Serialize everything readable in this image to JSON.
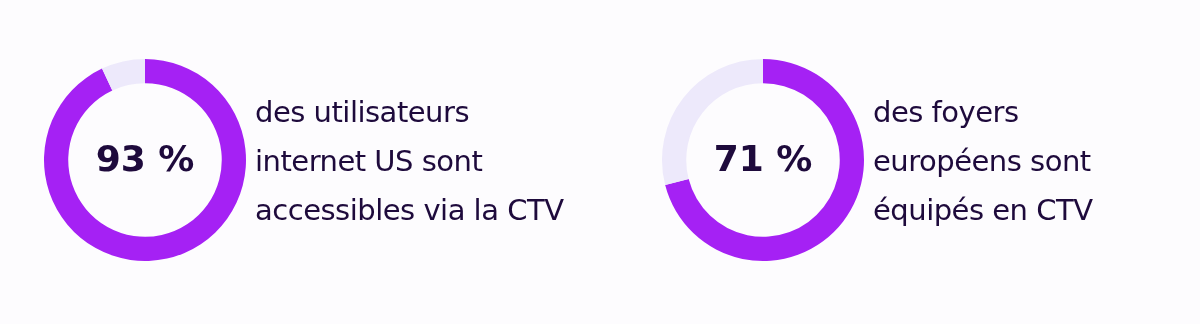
{
  "chart_data": [
    {
      "type": "donut",
      "title": "des utilisateurs\ninternet US sont\naccessibles via la CTV",
      "categories": [
        null,
        null
      ],
      "values": [
        93,
        7
      ],
      "colors": [
        "#a521f4",
        "#ede9fb"
      ],
      "value_labels": [
        "93 %",
        null
      ]
    },
    {
      "type": "donut",
      "title": "des foyers\neuropéens sont\néquipés en CTV",
      "categories": [
        null,
        null
      ],
      "values": [
        71,
        29
      ],
      "colors": [
        "#a521f4",
        "#ede9fb"
      ],
      "value_labels": [
        "71 %",
        null
      ]
    }
  ]
}
